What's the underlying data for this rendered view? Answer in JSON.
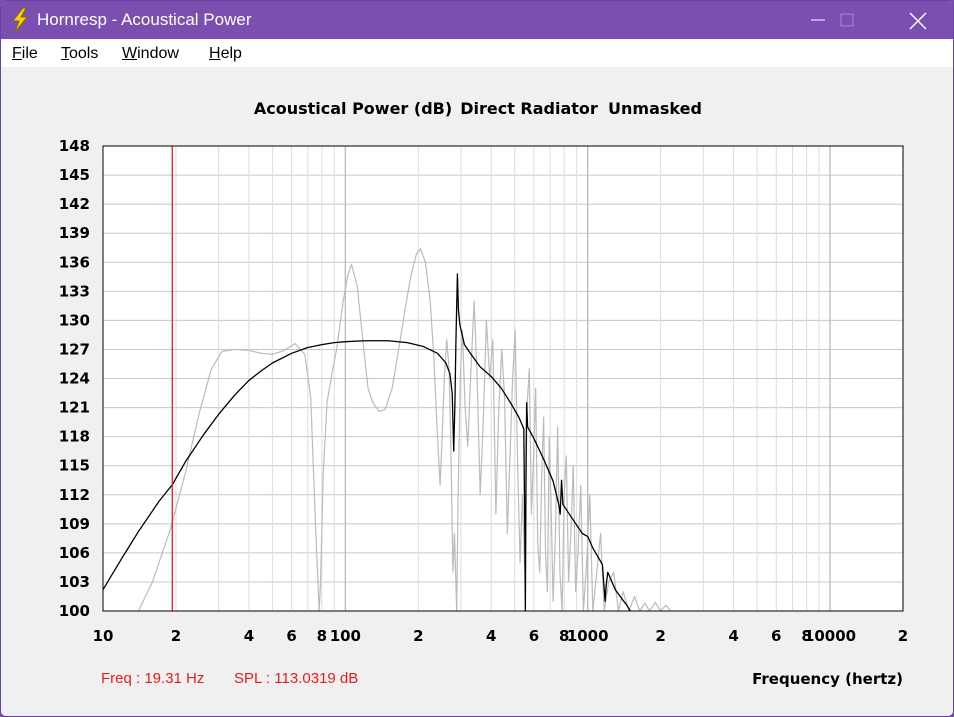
{
  "window": {
    "title": "Hornresp - Acoustical Power",
    "icon": "lightning-bolt-icon",
    "colors": {
      "titlebar": "#7a4fb0",
      "background": "#f0f0f0"
    }
  },
  "menu": {
    "items": [
      {
        "label": "File",
        "underline": "F",
        "rest": "ile"
      },
      {
        "label": "Tools",
        "underline": "T",
        "rest": "ools"
      },
      {
        "label": "Window",
        "underline": "W",
        "rest": "indow"
      },
      {
        "label": "Help",
        "underline": "H",
        "rest": "elp"
      }
    ]
  },
  "status": {
    "freq": "Freq : 19.31 Hz",
    "spl": "SPL : 113.0319 dB"
  },
  "chart_data": {
    "type": "line",
    "title": "Acoustical Power (dB)",
    "subtitle_parts": [
      "Direct Radiator",
      "Unmasked"
    ],
    "xlabel": "Frequency (hertz)",
    "ylabel": "",
    "x_scale": "log",
    "xlim": [
      10,
      20000
    ],
    "ylim": [
      100,
      148
    ],
    "grid": true,
    "y_ticks": [
      100,
      103,
      106,
      109,
      112,
      115,
      118,
      121,
      124,
      127,
      130,
      133,
      136,
      139,
      142,
      145,
      148
    ],
    "x_tick_labels": [
      {
        "x": 10,
        "label": "10"
      },
      {
        "x": 20,
        "label": "2"
      },
      {
        "x": 40,
        "label": "4"
      },
      {
        "x": 60,
        "label": "6"
      },
      {
        "x": 80,
        "label": "8"
      },
      {
        "x": 100,
        "label": "100"
      },
      {
        "x": 200,
        "label": "2"
      },
      {
        "x": 400,
        "label": "4"
      },
      {
        "x": 600,
        "label": "6"
      },
      {
        "x": 800,
        "label": "8"
      },
      {
        "x": 1000,
        "label": "1000"
      },
      {
        "x": 2000,
        "label": "2"
      },
      {
        "x": 4000,
        "label": "4"
      },
      {
        "x": 6000,
        "label": "6"
      },
      {
        "x": 8000,
        "label": "8"
      },
      {
        "x": 10000,
        "label": "10000"
      },
      {
        "x": 20000,
        "label": "2"
      }
    ],
    "cursor": {
      "x": 19.31,
      "y": 113.0319,
      "color": "#e02020"
    },
    "series": [
      {
        "color": "#000000",
        "points": [
          [
            10,
            102.2
          ],
          [
            12,
            105.5
          ],
          [
            14,
            108.2
          ],
          [
            17,
            111.3
          ],
          [
            19.31,
            113.03
          ],
          [
            22,
            115.5
          ],
          [
            26,
            118.2
          ],
          [
            30,
            120.3
          ],
          [
            35,
            122.3
          ],
          [
            40,
            123.8
          ],
          [
            45,
            124.8
          ],
          [
            50,
            125.6
          ],
          [
            60,
            126.6
          ],
          [
            70,
            127.2
          ],
          [
            80,
            127.5
          ],
          [
            90,
            127.7
          ],
          [
            100,
            127.8
          ],
          [
            120,
            127.9
          ],
          [
            150,
            127.9
          ],
          [
            180,
            127.7
          ],
          [
            210,
            127.3
          ],
          [
            240,
            126.6
          ],
          [
            260,
            125.6
          ],
          [
            270,
            124.5
          ],
          [
            276,
            122.5
          ],
          [
            280,
            116.5
          ],
          [
            283,
            121
          ],
          [
            286,
            128
          ],
          [
            290,
            134.8
          ],
          [
            293,
            131
          ],
          [
            297,
            129.5
          ],
          [
            310,
            127.5
          ],
          [
            330,
            126.5
          ],
          [
            360,
            125.2
          ],
          [
            400,
            124.2
          ],
          [
            440,
            123
          ],
          [
            480,
            121.5
          ],
          [
            520,
            120
          ],
          [
            545,
            118.8
          ],
          [
            550,
            108.5
          ],
          [
            553,
            100
          ],
          [
            557,
            116
          ],
          [
            560,
            121.5
          ],
          [
            565,
            119
          ],
          [
            600,
            117.8
          ],
          [
            660,
            115.6
          ],
          [
            720,
            113.4
          ],
          [
            760,
            111
          ],
          [
            770,
            110
          ],
          [
            780,
            113.5
          ],
          [
            790,
            111
          ],
          [
            850,
            109.8
          ],
          [
            950,
            108
          ],
          [
            1000,
            107.7
          ],
          [
            1050,
            106.5
          ],
          [
            1150,
            104.8
          ],
          [
            1180,
            101
          ],
          [
            1190,
            102.5
          ],
          [
            1210,
            104
          ],
          [
            1300,
            102.2
          ],
          [
            1380,
            101.3
          ],
          [
            1450,
            100.6
          ],
          [
            1500,
            100
          ]
        ]
      },
      {
        "color": "#bbbbbb",
        "points": [
          [
            14,
            100
          ],
          [
            16,
            103
          ],
          [
            19,
            108.5
          ],
          [
            22,
            114.5
          ],
          [
            25,
            120.5
          ],
          [
            28,
            125
          ],
          [
            31,
            126.8
          ],
          [
            35,
            127
          ],
          [
            40,
            126.9
          ],
          [
            45,
            126.6
          ],
          [
            50,
            126.5
          ],
          [
            56,
            126.9
          ],
          [
            62,
            127.6
          ],
          [
            68,
            126.5
          ],
          [
            72,
            122
          ],
          [
            75,
            110
          ],
          [
            78,
            100
          ],
          [
            79,
            103
          ],
          [
            81,
            114
          ],
          [
            84,
            121.5
          ],
          [
            88,
            124.5
          ],
          [
            92,
            127
          ],
          [
            95,
            129.5
          ],
          [
            98,
            132
          ],
          [
            102,
            134.5
          ],
          [
            106,
            135.8
          ],
          [
            112,
            133.5
          ],
          [
            118,
            128
          ],
          [
            124,
            123
          ],
          [
            130,
            121.5
          ],
          [
            138,
            120.6
          ],
          [
            146,
            120.8
          ],
          [
            156,
            123
          ],
          [
            166,
            127
          ],
          [
            176,
            131
          ],
          [
            186,
            134.5
          ],
          [
            196,
            136.8
          ],
          [
            204,
            137.4
          ],
          [
            214,
            136
          ],
          [
            224,
            132
          ],
          [
            232,
            126
          ],
          [
            240,
            118
          ],
          [
            246,
            113
          ],
          [
            250,
            117
          ],
          [
            256,
            124
          ],
          [
            262,
            128
          ],
          [
            268,
            125
          ],
          [
            272,
            118
          ],
          [
            278,
            104
          ],
          [
            282,
            108
          ],
          [
            288,
            100
          ],
          [
            292,
            112
          ],
          [
            298,
            124
          ],
          [
            304,
            129
          ],
          [
            312,
            121
          ],
          [
            320,
            117
          ],
          [
            330,
            125
          ],
          [
            340,
            132
          ],
          [
            350,
            124
          ],
          [
            360,
            112
          ],
          [
            370,
            119
          ],
          [
            382,
            130
          ],
          [
            394,
            124
          ],
          [
            406,
            128
          ],
          [
            418,
            110
          ],
          [
            430,
            121
          ],
          [
            442,
            127
          ],
          [
            454,
            122
          ],
          [
            466,
            108
          ],
          [
            478,
            116
          ],
          [
            490,
            124
          ],
          [
            502,
            129
          ],
          [
            514,
            115
          ],
          [
            526,
            105
          ],
          [
            538,
            112
          ],
          [
            550,
            104
          ],
          [
            562,
            121
          ],
          [
            574,
            125
          ],
          [
            586,
            110
          ],
          [
            598,
            116
          ],
          [
            610,
            123
          ],
          [
            622,
            107
          ],
          [
            634,
            104
          ],
          [
            646,
            114
          ],
          [
            658,
            120
          ],
          [
            670,
            106
          ],
          [
            682,
            102
          ],
          [
            694,
            118
          ],
          [
            706,
            111
          ],
          [
            720,
            101
          ],
          [
            736,
            108
          ],
          [
            752,
            119
          ],
          [
            768,
            104
          ],
          [
            784,
            100
          ],
          [
            800,
            112
          ],
          [
            816,
            116
          ],
          [
            834,
            103
          ],
          [
            852,
            108
          ],
          [
            872,
            115
          ],
          [
            892,
            102
          ],
          [
            912,
            106
          ],
          [
            936,
            113
          ],
          [
            960,
            100
          ],
          [
            990,
            105
          ],
          [
            1020,
            112
          ],
          [
            1050,
            100
          ],
          [
            1090,
            104
          ],
          [
            1130,
            108
          ],
          [
            1170,
            100
          ],
          [
            1220,
            103
          ],
          [
            1280,
            104
          ],
          [
            1340,
            100
          ],
          [
            1400,
            102
          ],
          [
            1480,
            100
          ],
          [
            1560,
            101.5
          ],
          [
            1640,
            100
          ],
          [
            1720,
            100.8
          ],
          [
            1800,
            100
          ],
          [
            1900,
            100.9
          ],
          [
            2000,
            100
          ],
          [
            2100,
            100.6
          ],
          [
            2200,
            100
          ]
        ]
      }
    ]
  }
}
